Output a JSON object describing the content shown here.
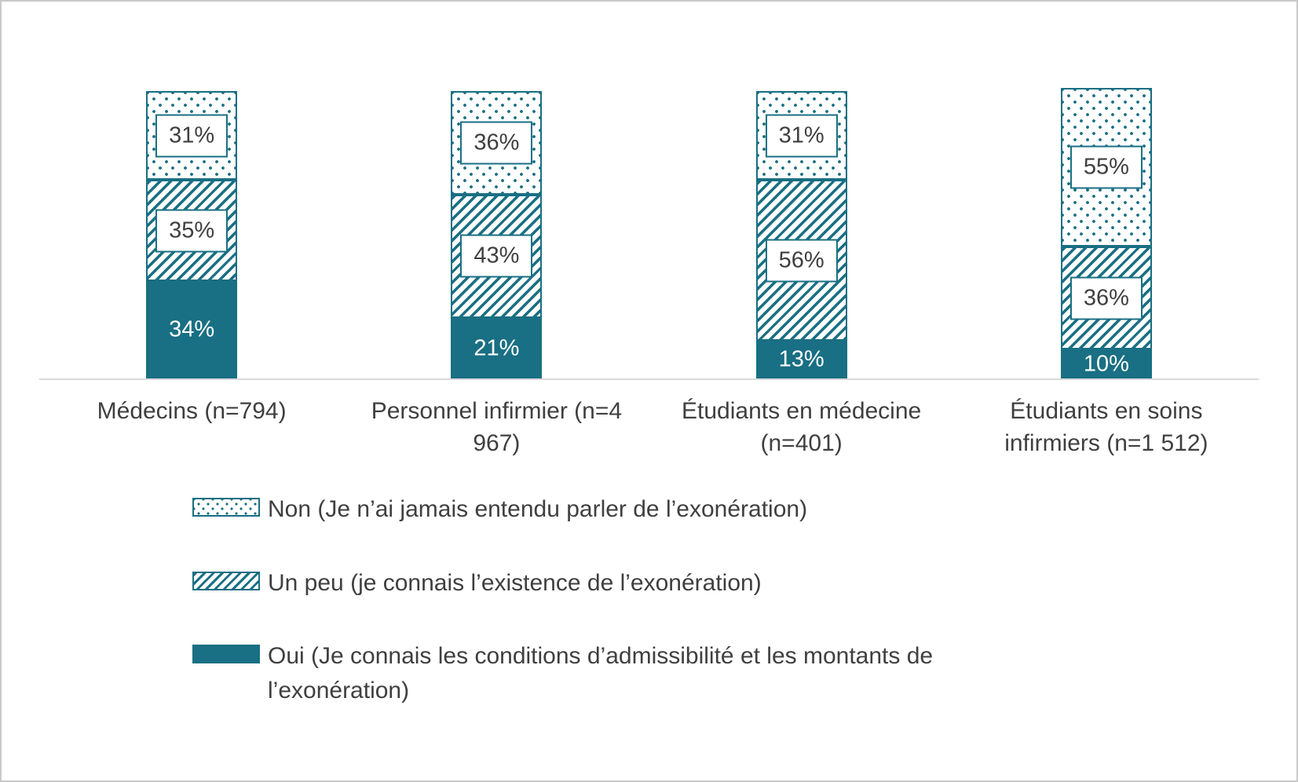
{
  "chart_data": {
    "type": "bar",
    "stacked": true,
    "orientation": "vertical",
    "title": "",
    "xlabel": "",
    "ylabel": "",
    "ylim": [
      0,
      100
    ],
    "grid": false,
    "legend_position": "bottom-left",
    "value_suffix": "%",
    "categories": [
      "Médecins (n=794)",
      "Personnel infirmier (n=4 967)",
      "Étudiants en médecine (n=401)",
      "Étudiants en soins infirmiers (n=1 512)"
    ],
    "series": [
      {
        "name": "Oui (Je connais les conditions d’admissibilité et les montants de l’exonération)",
        "pattern": "solid",
        "label_style": "plain-white",
        "values": [
          34,
          21,
          13,
          10
        ]
      },
      {
        "name": "Un peu (je connais l’existence de l’exonération)",
        "pattern": "diagonal-hatch",
        "label_style": "boxed",
        "values": [
          35,
          43,
          56,
          36
        ]
      },
      {
        "name": "Non (Je n’ai jamais entendu parler de l’exonération)",
        "pattern": "dots",
        "label_style": "boxed",
        "values": [
          31,
          36,
          31,
          55
        ]
      }
    ],
    "colors": {
      "accent": "#196f83",
      "axis": "#d9d9d9",
      "text": "#3f3f3f",
      "label_box_bg": "#ffffff",
      "plain_label_text": "#ffffff"
    }
  },
  "legend": {
    "items": [
      {
        "label": "Non (Je n’ai jamais entendu parler de l’exonération)",
        "pattern": "dots"
      },
      {
        "label": "Un peu (je connais l’existence de l’exonération)",
        "pattern": "diagonal-hatch"
      },
      {
        "label": "Oui (Je connais les conditions d’admissibilité et les montants de l’exonération)",
        "pattern": "solid"
      }
    ]
  }
}
